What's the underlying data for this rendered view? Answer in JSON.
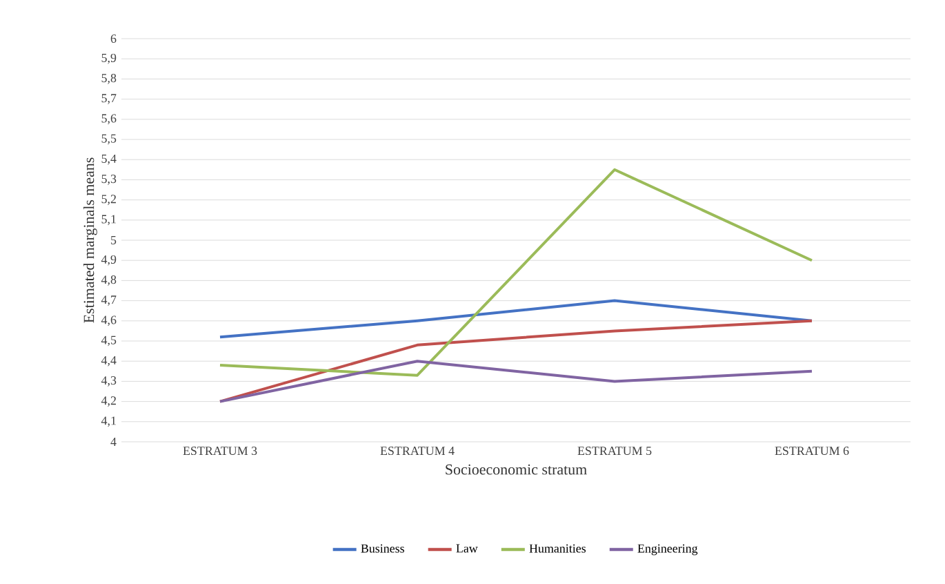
{
  "chart_data": {
    "type": "line",
    "xlabel": "Socioeconomic stratum",
    "ylabel": "Estimated marginals means",
    "categories": [
      "ESTRATUM 3",
      "ESTRATUM 4",
      "ESTRATUM 5",
      "ESTRATUM 6"
    ],
    "series": [
      {
        "name": "Business",
        "color": "#4472c4",
        "values": [
          4.52,
          4.6,
          4.7,
          4.6
        ]
      },
      {
        "name": "Law",
        "color": "#c0504d",
        "values": [
          4.2,
          4.48,
          4.55,
          4.6
        ]
      },
      {
        "name": "Humanities",
        "color": "#9bbb59",
        "values": [
          4.38,
          4.33,
          5.35,
          4.9
        ]
      },
      {
        "name": "Engineering",
        "color": "#8064a2",
        "values": [
          4.2,
          4.4,
          4.3,
          4.35
        ]
      }
    ],
    "ylim": [
      4,
      6
    ],
    "yticks": [
      4,
      {
        "value": 4.1,
        "label": "4,1"
      },
      {
        "value": 4.2,
        "label": "4,2"
      },
      {
        "value": 4.3,
        "label": "4,3"
      },
      {
        "value": 4.4,
        "label": "4,4"
      },
      {
        "value": 4.5,
        "label": "4,5"
      },
      {
        "value": 4.6,
        "label": "4,6"
      },
      {
        "value": 4.7,
        "label": "4,7"
      },
      {
        "value": 4.8,
        "label": "4,8"
      },
      {
        "value": 4.9,
        "label": "4,9"
      },
      5,
      {
        "value": 5.1,
        "label": "5,1"
      },
      {
        "value": 5.2,
        "label": "5,2"
      },
      {
        "value": 5.3,
        "label": "5,3"
      },
      {
        "value": 5.4,
        "label": "5,4"
      },
      {
        "value": 5.5,
        "label": "5,5"
      },
      {
        "value": 5.6,
        "label": "5,6"
      },
      {
        "value": 5.7,
        "label": "5,7"
      },
      {
        "value": 5.8,
        "label": "5,8"
      },
      {
        "value": 5.9,
        "label": "5,9"
      },
      6
    ],
    "grid": "y",
    "legend": "bottom",
    "marker": "none",
    "line_style": "solid"
  }
}
